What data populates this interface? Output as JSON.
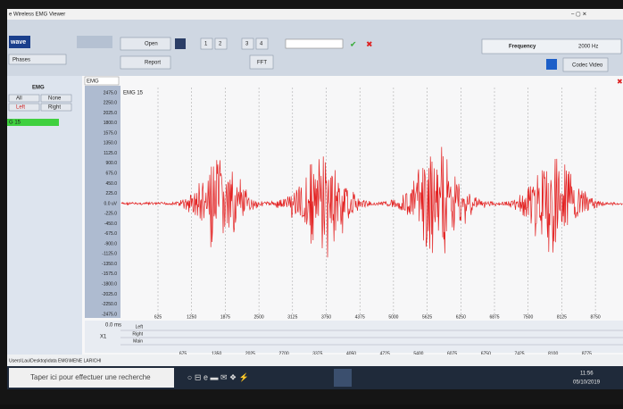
{
  "window": {
    "title": "e Wireless EMG Viewer"
  },
  "toolbar": {
    "open": "Open",
    "report": "Report",
    "pages": [
      "1",
      "2",
      "3",
      "4"
    ],
    "fft": "FFT",
    "frequency_label": "Frequency",
    "frequency_value": "2000 Hz",
    "codec": "Codec Video",
    "logo": "wave",
    "phases": "Phases"
  },
  "left_panel": {
    "header": "EMG",
    "buttons": [
      "All",
      "None",
      "Left",
      "Right"
    ],
    "channel": "G 15"
  },
  "plot": {
    "selector": "EMG",
    "channel_label": "EMG 15",
    "y_labels": [
      "2475.0",
      "2250.0",
      "2025.0",
      "1800.0",
      "1575.0",
      "1350.0",
      "1125.0",
      "900.0",
      "675.0",
      "450.0",
      "225.0",
      "0.0 uV",
      "-225.0",
      "-450.0",
      "-675.0",
      "-900.0",
      "-1125.0",
      "-1350.0",
      "-1575.0",
      "-1800.0",
      "-2025.0",
      "-2250.0",
      "-2475.0"
    ],
    "x_labels": [
      "625",
      "1250",
      "1875",
      "2500",
      "3125",
      "3750",
      "4375",
      "5000",
      "5625",
      "6250",
      "6875",
      "7500",
      "8125",
      "8750"
    ],
    "time_label": "0.0 ms",
    "zoom": "X1",
    "rows": [
      "Left",
      "Right",
      "Main"
    ],
    "bottom_labels": [
      "675",
      "1350",
      "2025",
      "2700",
      "3375",
      "4050",
      "4725",
      "5400",
      "6075",
      "6750",
      "7425",
      "8100",
      "8775"
    ]
  },
  "status": {
    "path": "Users\\Lau\\Desktop\\data EMG\\MENE LARICHI"
  },
  "taskbar": {
    "search": "Taper ici pour effectuer une recherche",
    "time": "11:56",
    "date": "05/10/2019"
  }
}
